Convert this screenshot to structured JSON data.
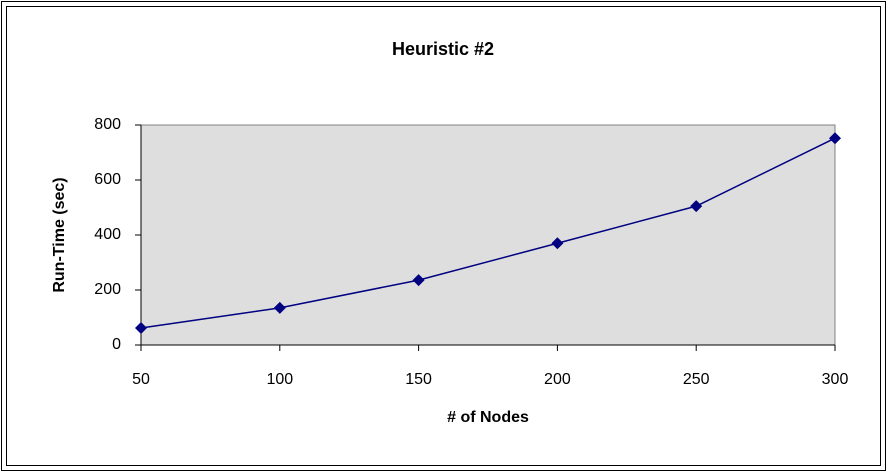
{
  "chart_data": {
    "type": "line",
    "title": "Heuristic #2",
    "x_label": "# of Nodes",
    "y_label": "Run-Time (sec)",
    "x": [
      50,
      100,
      150,
      200,
      250,
      300
    ],
    "series": [
      {
        "color": "#000080",
        "values": [
          62,
          135,
          236,
          370,
          505,
          752
        ]
      }
    ],
    "xlim": [
      50,
      300
    ],
    "xticks": [
      50,
      100,
      150,
      200,
      250,
      300
    ],
    "ylim": [
      0,
      800
    ],
    "yticks": [
      0,
      200,
      400,
      600,
      800
    ],
    "grid": false
  }
}
